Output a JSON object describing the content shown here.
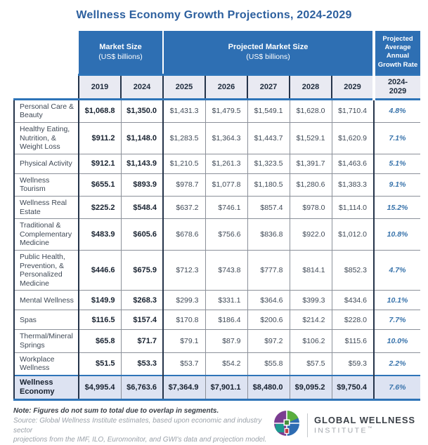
{
  "title": "Wellness Economy Growth Projections, 2024-2029",
  "chart_data": {
    "type": "table",
    "title": "Wellness Economy Growth Projections, 2024-2029",
    "header": {
      "market_size_title": "Market Size",
      "projected_market_size_title": "Projected Market Size",
      "units": "(US$ billions)",
      "growth_title": "Projected Average Annual Growth Rate",
      "years": [
        "2019",
        "2024",
        "2025",
        "2026",
        "2027",
        "2028",
        "2029"
      ],
      "growth_period_line1": "2024-",
      "growth_period_line2": "2029"
    },
    "rows": [
      {
        "label": "Personal Care & Beauty",
        "values": [
          "$1,068.8",
          "$1,350.0",
          "$1,431.3",
          "$1,479.5",
          "$1,549.1",
          "$1,628.0",
          "$1,710.4"
        ],
        "growth": "4.8%"
      },
      {
        "label": "Healthy Eating, Nutrition, & Weight Loss",
        "values": [
          "$911.2",
          "$1,148.0",
          "$1,283.5",
          "$1,364.3",
          "$1,443.7",
          "$1,529.1",
          "$1,620.9"
        ],
        "growth": "7.1%"
      },
      {
        "label": "Physical Activity",
        "values": [
          "$912.1",
          "$1,143.9",
          "$1,210.5",
          "$1,261.3",
          "$1,323.5",
          "$1,391.7",
          "$1,463.6"
        ],
        "growth": "5.1%"
      },
      {
        "label": "Wellness Tourism",
        "values": [
          "$655.1",
          "$893.9",
          "$978.7",
          "$1,077.8",
          "$1,180.5",
          "$1,280.6",
          "$1,383.3"
        ],
        "growth": "9.1%"
      },
      {
        "label": "Wellness Real Estate",
        "values": [
          "$225.2",
          "$548.4",
          "$637.2",
          "$746.1",
          "$857.4",
          "$978.0",
          "$1,114.0"
        ],
        "growth": "15.2%"
      },
      {
        "label": "Traditional & Complementary Medicine",
        "values": [
          "$483.9",
          "$605.6",
          "$678.6",
          "$756.6",
          "$836.8",
          "$922.0",
          "$1,012.0"
        ],
        "growth": "10.8%"
      },
      {
        "label": "Public Health, Prevention, & Personalized Medicine",
        "values": [
          "$446.6",
          "$675.9",
          "$712.3",
          "$743.8",
          "$777.8",
          "$814.1",
          "$852.3"
        ],
        "growth": "4.7%"
      },
      {
        "label": "Mental Wellness",
        "values": [
          "$149.9",
          "$268.3",
          "$299.3",
          "$331.1",
          "$364.6",
          "$399.3",
          "$434.6"
        ],
        "growth": "10.1%"
      },
      {
        "label": "Spas",
        "values": [
          "$116.5",
          "$157.4",
          "$170.8",
          "$186.4",
          "$200.6",
          "$214.2",
          "$228.0"
        ],
        "growth": "7.7%"
      },
      {
        "label": "Thermal/Mineral Springs",
        "values": [
          "$65.8",
          "$71.7",
          "$79.1",
          "$87.9",
          "$97.2",
          "$106.2",
          "$115.6"
        ],
        "growth": "10.0%"
      },
      {
        "label": "Workplace Wellness",
        "values": [
          "$51.5",
          "$53.3",
          "$53.7",
          "$54.2",
          "$55.8",
          "$57.5",
          "$59.3"
        ],
        "growth": "2.2%"
      }
    ],
    "total": {
      "label": "Wellness Economy",
      "values": [
        "$4,995.4",
        "$6,763.6",
        "$7,364.9",
        "$7,901.1",
        "$8,480.0",
        "$9,095.2",
        "$9,750.4"
      ],
      "growth": "7.6%"
    }
  },
  "footer": {
    "note": "Note: Figures do not sum to total due to overlap in segments.",
    "source_line1": "Source: Global Wellness Institute estimates, based upon economic and industry sector",
    "source_line2": "projections from the IMF, ILO, Euromonitor, and GWI's data and projection model.",
    "logo": {
      "name": "GLOBAL WELLNESS",
      "sub": "INSTITUTE",
      "tm": "™"
    }
  },
  "colors": {
    "header_blue": "#2e6fb3",
    "title_blue": "#2c5f9e",
    "accent_line_blue": "#2e74b8",
    "growth_text_blue": "#3873ab",
    "year_row_bg": "#e9eaf2",
    "total_row_bg": "#dde3f2",
    "dark_border": "#25344a",
    "logo_purple": "#7b3d91",
    "logo_green": "#5aae3e",
    "logo_blue": "#2e6cb2",
    "logo_teal": "#1e9a90",
    "logo_red": "#c43b44"
  }
}
